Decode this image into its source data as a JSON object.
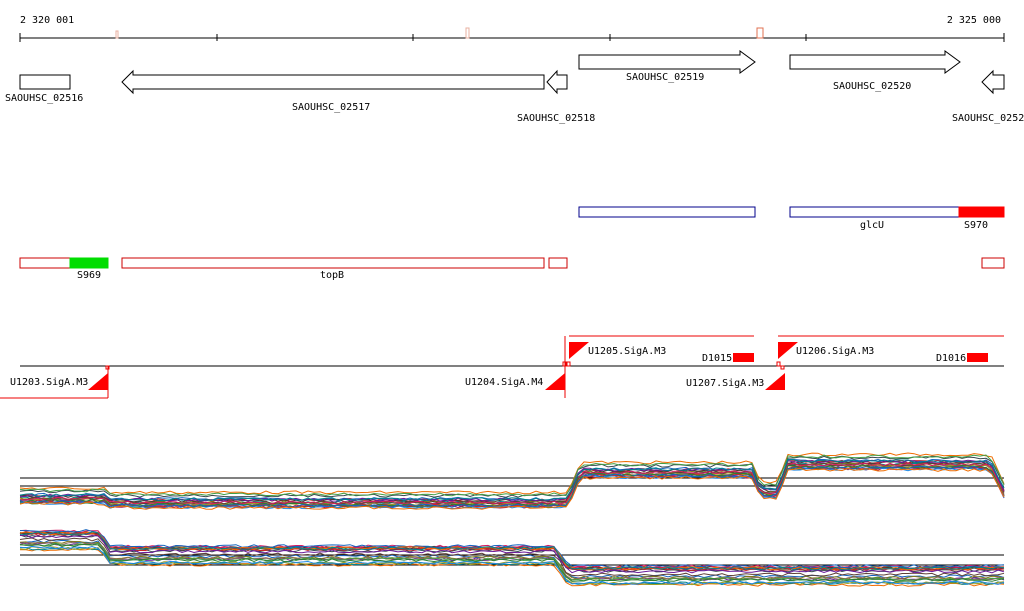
{
  "ruler": {
    "start_label": "2 320 001",
    "end_label": "2 325 000"
  },
  "genes": [
    {
      "label": "SAOUHSC_02516"
    },
    {
      "label": "SAOUHSC_02517"
    },
    {
      "label": "SAOUHSC_02518"
    },
    {
      "label": "SAOUHSC_02519"
    },
    {
      "label": "SAOUHSC_02520"
    },
    {
      "label": "SAOUHSC_0252"
    }
  ],
  "plus_strand_features": [
    {
      "label": ""
    },
    {
      "label": "glcU"
    },
    {
      "label": "S970",
      "color": "#ff0000"
    }
  ],
  "minus_strand_features": [
    {
      "label": ""
    },
    {
      "label": "S969",
      "color": "#00dd00"
    },
    {
      "label": "topB"
    },
    {
      "label": ""
    },
    {
      "label": ""
    }
  ],
  "promoters": [
    {
      "label": "U1203.SigA.M3"
    },
    {
      "label": "U1204.SigA.M4"
    },
    {
      "label": "U1205.SigA.M3"
    },
    {
      "label": "D1015"
    },
    {
      "label": "U1207.SigA.M3"
    },
    {
      "label": "U1206.SigA.M3"
    },
    {
      "label": "D1016"
    }
  ],
  "colors": {
    "gene_outline": "#000000",
    "plus_feature_outline": "#00008b",
    "minus_feature_outline": "#cc0000",
    "promoter": "#ff0000",
    "ruler": "#000000"
  },
  "profile_palette": [
    "#c62828",
    "#2e7d32",
    "#1565c0",
    "#6a1b9a",
    "#ef6c00",
    "#00838f",
    "#827717",
    "#ad1457",
    "#4e342e",
    "#8d6e63",
    "#37474f",
    "#9e9d24",
    "#5d4037",
    "#d81b60",
    "#1e88e5",
    "#43a047"
  ]
}
